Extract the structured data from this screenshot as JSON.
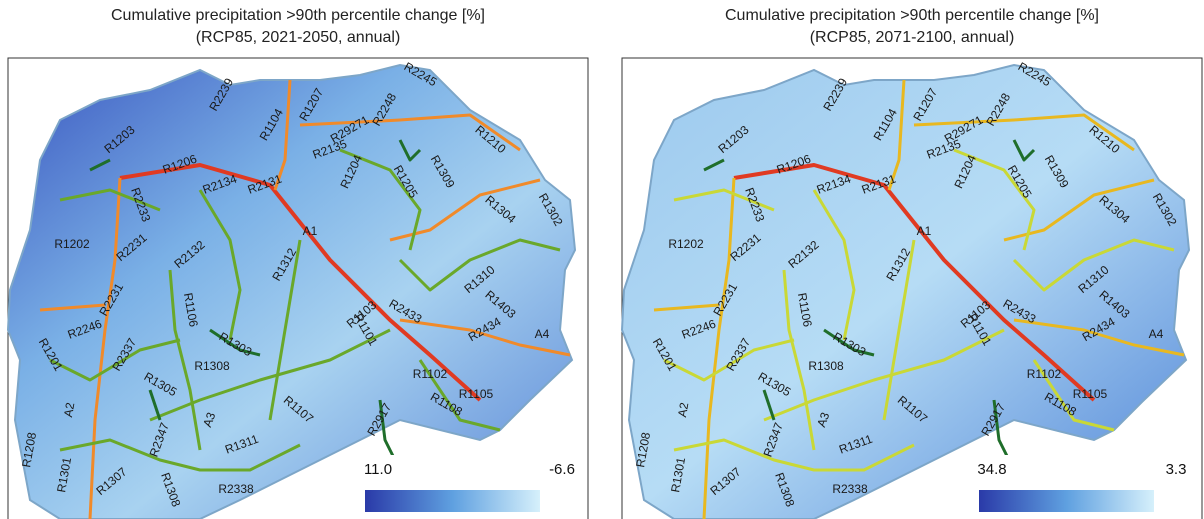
{
  "panels": [
    {
      "title": "Cumulative precipitation >90th percentile change [%]",
      "subtitle": "(RCP85, 2021-2050, annual)",
      "legend": {
        "max": "11.0",
        "min": "-6.6"
      }
    },
    {
      "title": "Cumulative precipitation >90th percentile change [%]",
      "subtitle": "(RCP85, 2071-2100, annual)",
      "legend": {
        "max": "34.8",
        "min": "3.3"
      }
    }
  ],
  "road_labels": [
    "R1203",
    "R1206",
    "R2239",
    "R1104",
    "R1207",
    "R2248",
    "R2245",
    "R29271",
    "R1210",
    "R2134",
    "R2131",
    "R2135",
    "R1204",
    "R1205",
    "R1309",
    "R1304",
    "R1302",
    "R2233",
    "R1202",
    "R2231",
    "R2132",
    "A1",
    "R1106",
    "R1312",
    "R1103",
    "R2433",
    "R1310",
    "R1403",
    "R2434",
    "A4",
    "R2246",
    "R2231",
    "R1201",
    "R2337",
    "R1303",
    "R1308",
    "R1305",
    "R1101",
    "R1102",
    "R1105",
    "A2",
    "R1107",
    "R2917",
    "R1108",
    "R1208",
    "R2347",
    "A3",
    "R1311",
    "R1301",
    "R1307",
    "R1308",
    "R2338"
  ]
}
